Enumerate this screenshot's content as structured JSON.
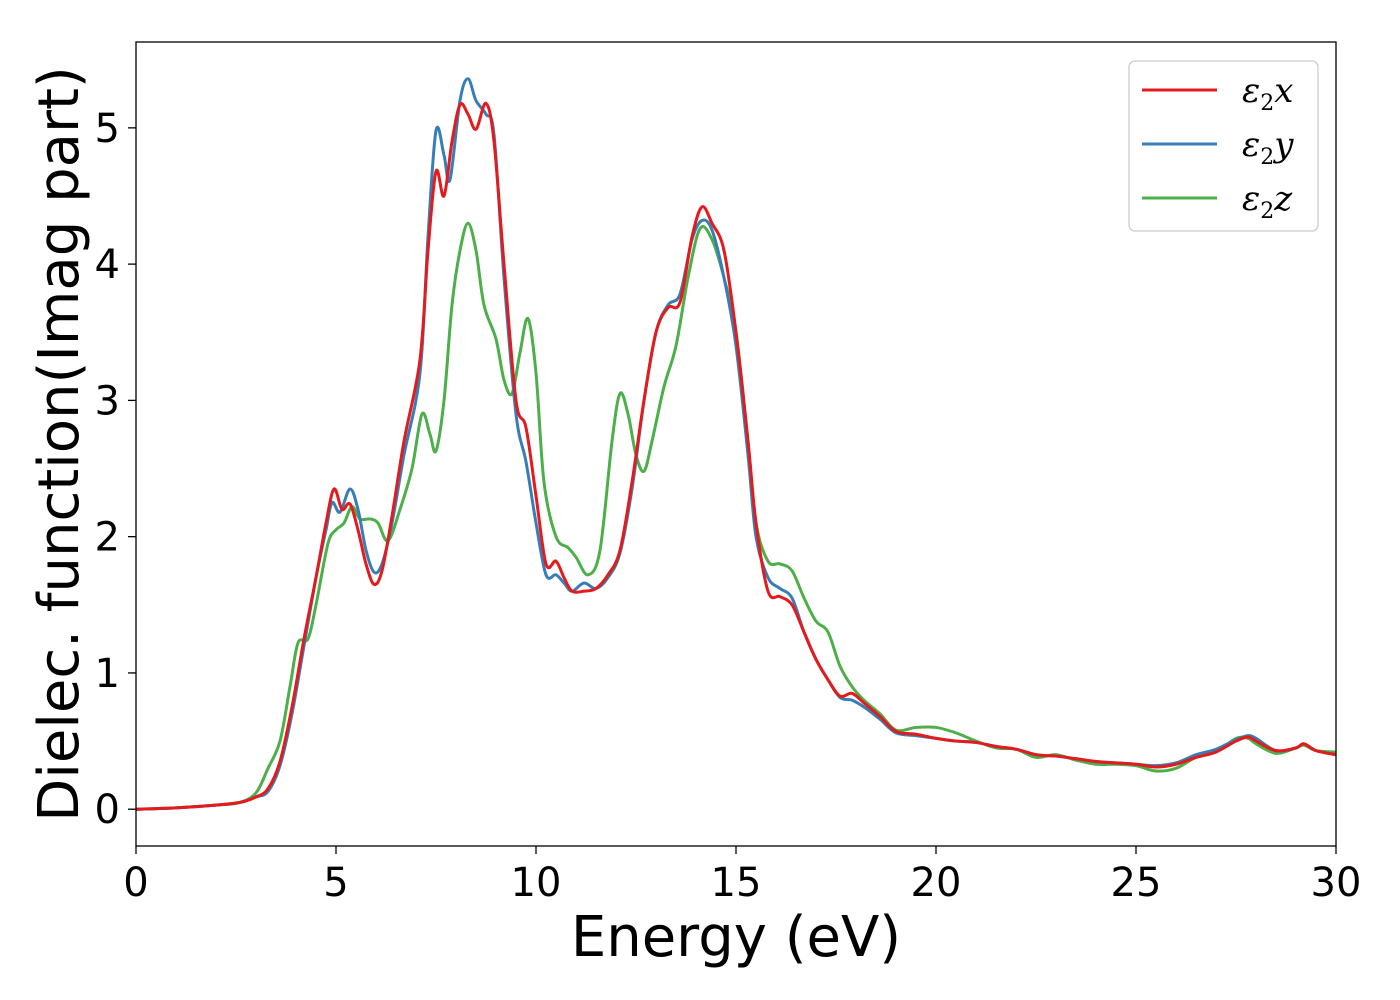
{
  "chart_data": {
    "type": "line",
    "title": "",
    "xlabel": "Energy (eV)",
    "ylabel": "Dielec. function(Imag part)",
    "xlim": [
      0,
      30
    ],
    "ylim": [
      -0.27,
      5.63
    ],
    "xticks": [
      0,
      5,
      10,
      15,
      20,
      25,
      30
    ],
    "yticks": [
      0,
      1,
      2,
      3,
      4,
      5
    ],
    "grid": false,
    "legend_position": "top-right",
    "series": [
      {
        "name": "ε2x",
        "legend": {
          "base": "ε",
          "sub": "2",
          "suffix": "x"
        },
        "color": "#e41a1c",
        "points": [
          [
            0,
            0
          ],
          [
            1,
            0.01
          ],
          [
            2,
            0.03
          ],
          [
            2.6,
            0.05
          ],
          [
            3.0,
            0.09
          ],
          [
            3.3,
            0.15
          ],
          [
            3.6,
            0.35
          ],
          [
            3.9,
            0.75
          ],
          [
            4.2,
            1.25
          ],
          [
            4.5,
            1.7
          ],
          [
            4.75,
            2.1
          ],
          [
            4.95,
            2.35
          ],
          [
            5.15,
            2.2
          ],
          [
            5.35,
            2.24
          ],
          [
            5.55,
            2.05
          ],
          [
            5.75,
            1.8
          ],
          [
            5.95,
            1.65
          ],
          [
            6.15,
            1.75
          ],
          [
            6.4,
            2.15
          ],
          [
            6.7,
            2.7
          ],
          [
            7.1,
            3.3
          ],
          [
            7.3,
            4.1
          ],
          [
            7.5,
            4.68
          ],
          [
            7.7,
            4.5
          ],
          [
            7.9,
            4.9
          ],
          [
            8.1,
            5.17
          ],
          [
            8.3,
            5.1
          ],
          [
            8.5,
            4.99
          ],
          [
            8.75,
            5.18
          ],
          [
            8.95,
            4.9
          ],
          [
            9.2,
            4.0
          ],
          [
            9.5,
            3.0
          ],
          [
            9.75,
            2.8
          ],
          [
            10.0,
            2.3
          ],
          [
            10.25,
            1.8
          ],
          [
            10.5,
            1.82
          ],
          [
            10.7,
            1.7
          ],
          [
            10.9,
            1.6
          ],
          [
            11.2,
            1.6
          ],
          [
            11.5,
            1.62
          ],
          [
            11.8,
            1.72
          ],
          [
            12.1,
            1.9
          ],
          [
            12.4,
            2.4
          ],
          [
            12.7,
            3.0
          ],
          [
            13.0,
            3.5
          ],
          [
            13.3,
            3.68
          ],
          [
            13.6,
            3.72
          ],
          [
            13.9,
            4.2
          ],
          [
            14.15,
            4.42
          ],
          [
            14.4,
            4.3
          ],
          [
            14.7,
            4.1
          ],
          [
            15.0,
            3.5
          ],
          [
            15.3,
            2.7
          ],
          [
            15.5,
            2.1
          ],
          [
            15.8,
            1.6
          ],
          [
            16.1,
            1.56
          ],
          [
            16.4,
            1.5
          ],
          [
            16.7,
            1.3
          ],
          [
            17.0,
            1.1
          ],
          [
            17.3,
            0.95
          ],
          [
            17.6,
            0.83
          ],
          [
            17.9,
            0.85
          ],
          [
            18.2,
            0.78
          ],
          [
            18.6,
            0.68
          ],
          [
            19.0,
            0.57
          ],
          [
            19.5,
            0.55
          ],
          [
            20.0,
            0.52
          ],
          [
            20.5,
            0.5
          ],
          [
            21.0,
            0.49
          ],
          [
            21.5,
            0.46
          ],
          [
            22.0,
            0.44
          ],
          [
            22.5,
            0.4
          ],
          [
            23.0,
            0.39
          ],
          [
            23.5,
            0.37
          ],
          [
            24.0,
            0.35
          ],
          [
            24.5,
            0.34
          ],
          [
            25.0,
            0.33
          ],
          [
            25.5,
            0.31
          ],
          [
            26.0,
            0.33
          ],
          [
            26.5,
            0.38
          ],
          [
            27.0,
            0.42
          ],
          [
            27.5,
            0.5
          ],
          [
            27.8,
            0.53
          ],
          [
            28.0,
            0.5
          ],
          [
            28.5,
            0.43
          ],
          [
            29.0,
            0.45
          ],
          [
            29.2,
            0.48
          ],
          [
            29.5,
            0.43
          ],
          [
            30.0,
            0.4
          ]
        ]
      },
      {
        "name": "ε2y",
        "legend": {
          "base": "ε",
          "sub": "2",
          "suffix": "y"
        },
        "color": "#377eb8",
        "points": [
          [
            0,
            0
          ],
          [
            1,
            0.01
          ],
          [
            2,
            0.03
          ],
          [
            2.6,
            0.05
          ],
          [
            3.0,
            0.09
          ],
          [
            3.3,
            0.13
          ],
          [
            3.6,
            0.32
          ],
          [
            3.9,
            0.7
          ],
          [
            4.2,
            1.2
          ],
          [
            4.5,
            1.7
          ],
          [
            4.75,
            2.05
          ],
          [
            4.9,
            2.25
          ],
          [
            5.1,
            2.18
          ],
          [
            5.35,
            2.35
          ],
          [
            5.55,
            2.2
          ],
          [
            5.75,
            1.9
          ],
          [
            5.95,
            1.74
          ],
          [
            6.15,
            1.8
          ],
          [
            6.4,
            2.1
          ],
          [
            6.7,
            2.6
          ],
          [
            7.1,
            3.2
          ],
          [
            7.3,
            4.2
          ],
          [
            7.5,
            4.98
          ],
          [
            7.7,
            4.8
          ],
          [
            7.85,
            4.62
          ],
          [
            8.1,
            5.2
          ],
          [
            8.3,
            5.36
          ],
          [
            8.5,
            5.2
          ],
          [
            8.75,
            5.1
          ],
          [
            8.95,
            4.95
          ],
          [
            9.2,
            3.9
          ],
          [
            9.5,
            2.9
          ],
          [
            9.75,
            2.55
          ],
          [
            10.0,
            2.1
          ],
          [
            10.25,
            1.72
          ],
          [
            10.5,
            1.72
          ],
          [
            10.7,
            1.66
          ],
          [
            10.9,
            1.6
          ],
          [
            11.2,
            1.66
          ],
          [
            11.5,
            1.62
          ],
          [
            11.8,
            1.7
          ],
          [
            12.1,
            1.88
          ],
          [
            12.4,
            2.35
          ],
          [
            12.7,
            3.0
          ],
          [
            13.0,
            3.5
          ],
          [
            13.3,
            3.7
          ],
          [
            13.6,
            3.78
          ],
          [
            13.9,
            4.18
          ],
          [
            14.15,
            4.32
          ],
          [
            14.4,
            4.25
          ],
          [
            14.7,
            3.9
          ],
          [
            15.0,
            3.4
          ],
          [
            15.3,
            2.6
          ],
          [
            15.5,
            2.0
          ],
          [
            15.8,
            1.7
          ],
          [
            16.1,
            1.62
          ],
          [
            16.4,
            1.55
          ],
          [
            16.7,
            1.3
          ],
          [
            17.0,
            1.1
          ],
          [
            17.3,
            0.95
          ],
          [
            17.6,
            0.82
          ],
          [
            17.9,
            0.8
          ],
          [
            18.2,
            0.75
          ],
          [
            18.6,
            0.66
          ],
          [
            19.0,
            0.56
          ],
          [
            19.5,
            0.54
          ],
          [
            20.0,
            0.52
          ],
          [
            20.5,
            0.5
          ],
          [
            21.0,
            0.49
          ],
          [
            21.5,
            0.46
          ],
          [
            22.0,
            0.44
          ],
          [
            22.5,
            0.4
          ],
          [
            23.0,
            0.39
          ],
          [
            23.5,
            0.37
          ],
          [
            24.0,
            0.35
          ],
          [
            24.5,
            0.34
          ],
          [
            25.0,
            0.33
          ],
          [
            25.5,
            0.32
          ],
          [
            26.0,
            0.34
          ],
          [
            26.5,
            0.4
          ],
          [
            27.0,
            0.44
          ],
          [
            27.5,
            0.51
          ],
          [
            27.8,
            0.54
          ],
          [
            28.0,
            0.52
          ],
          [
            28.5,
            0.43
          ],
          [
            29.0,
            0.45
          ],
          [
            29.2,
            0.48
          ],
          [
            29.5,
            0.43
          ],
          [
            30.0,
            0.4
          ]
        ]
      },
      {
        "name": "ε2z",
        "legend": {
          "base": "ε",
          "sub": "2",
          "suffix": "z"
        },
        "color": "#4daf4a",
        "points": [
          [
            0,
            0
          ],
          [
            1,
            0.01
          ],
          [
            2,
            0.03
          ],
          [
            2.6,
            0.05
          ],
          [
            3.0,
            0.12
          ],
          [
            3.3,
            0.3
          ],
          [
            3.6,
            0.5
          ],
          [
            3.85,
            0.9
          ],
          [
            4.05,
            1.22
          ],
          [
            4.3,
            1.25
          ],
          [
            4.5,
            1.5
          ],
          [
            4.8,
            1.95
          ],
          [
            5.0,
            2.05
          ],
          [
            5.2,
            2.1
          ],
          [
            5.4,
            2.22
          ],
          [
            5.6,
            2.13
          ],
          [
            5.85,
            2.13
          ],
          [
            6.05,
            2.1
          ],
          [
            6.3,
            1.97
          ],
          [
            6.6,
            2.2
          ],
          [
            6.9,
            2.5
          ],
          [
            7.15,
            2.9
          ],
          [
            7.35,
            2.75
          ],
          [
            7.5,
            2.63
          ],
          [
            7.7,
            3.0
          ],
          [
            7.9,
            3.7
          ],
          [
            8.1,
            4.1
          ],
          [
            8.3,
            4.3
          ],
          [
            8.5,
            4.1
          ],
          [
            8.7,
            3.7
          ],
          [
            9.0,
            3.45
          ],
          [
            9.2,
            3.15
          ],
          [
            9.4,
            3.05
          ],
          [
            9.6,
            3.35
          ],
          [
            9.8,
            3.6
          ],
          [
            10.0,
            3.2
          ],
          [
            10.2,
            2.4
          ],
          [
            10.5,
            2.0
          ],
          [
            10.8,
            1.92
          ],
          [
            11.0,
            1.85
          ],
          [
            11.3,
            1.72
          ],
          [
            11.6,
            1.9
          ],
          [
            11.9,
            2.7
          ],
          [
            12.1,
            3.05
          ],
          [
            12.3,
            2.9
          ],
          [
            12.5,
            2.6
          ],
          [
            12.7,
            2.48
          ],
          [
            12.9,
            2.7
          ],
          [
            13.2,
            3.1
          ],
          [
            13.5,
            3.4
          ],
          [
            13.8,
            3.9
          ],
          [
            14.1,
            4.26
          ],
          [
            14.4,
            4.18
          ],
          [
            14.7,
            3.9
          ],
          [
            15.0,
            3.5
          ],
          [
            15.3,
            2.7
          ],
          [
            15.5,
            2.1
          ],
          [
            15.8,
            1.82
          ],
          [
            16.1,
            1.8
          ],
          [
            16.4,
            1.75
          ],
          [
            16.7,
            1.55
          ],
          [
            17.0,
            1.38
          ],
          [
            17.3,
            1.3
          ],
          [
            17.6,
            1.05
          ],
          [
            17.9,
            0.9
          ],
          [
            18.2,
            0.8
          ],
          [
            18.6,
            0.7
          ],
          [
            19.0,
            0.58
          ],
          [
            19.5,
            0.6
          ],
          [
            20.0,
            0.6
          ],
          [
            20.5,
            0.56
          ],
          [
            21.0,
            0.5
          ],
          [
            21.5,
            0.45
          ],
          [
            22.0,
            0.44
          ],
          [
            22.5,
            0.38
          ],
          [
            23.0,
            0.4
          ],
          [
            23.5,
            0.36
          ],
          [
            24.0,
            0.33
          ],
          [
            24.5,
            0.33
          ],
          [
            25.0,
            0.32
          ],
          [
            25.5,
            0.28
          ],
          [
            26.0,
            0.3
          ],
          [
            26.5,
            0.38
          ],
          [
            27.0,
            0.42
          ],
          [
            27.5,
            0.52
          ],
          [
            27.8,
            0.52
          ],
          [
            28.0,
            0.48
          ],
          [
            28.5,
            0.41
          ],
          [
            29.0,
            0.45
          ],
          [
            29.2,
            0.47
          ],
          [
            29.5,
            0.43
          ],
          [
            30.0,
            0.42
          ]
        ]
      }
    ]
  }
}
